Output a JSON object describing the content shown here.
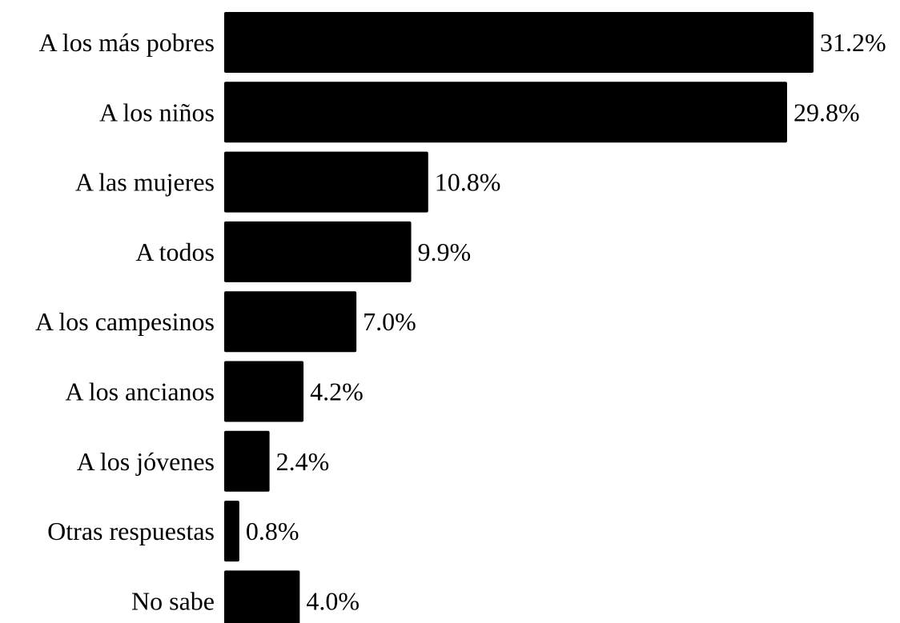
{
  "chart_data": {
    "type": "bar",
    "orientation": "horizontal",
    "title": "",
    "xlabel": "",
    "ylabel": "",
    "categories": [
      "A los más pobres",
      "A los niños",
      "A las mujeres",
      "A todos",
      "A los campesinos",
      "A los ancianos",
      "A los jóvenes",
      "Otras respuestas",
      "No sabe"
    ],
    "values": [
      31.2,
      29.8,
      10.8,
      9.9,
      7.0,
      4.2,
      2.4,
      0.8,
      4.0
    ],
    "value_labels": [
      "31.2%",
      "29.8%",
      "10.8%",
      "9.9%",
      "7.0%",
      "4.2%",
      "2.4%",
      "0.8%",
      "4.0%"
    ],
    "xlim": [
      0,
      31.2
    ],
    "grid": false,
    "legend": "none",
    "bar_color": "#000000"
  }
}
